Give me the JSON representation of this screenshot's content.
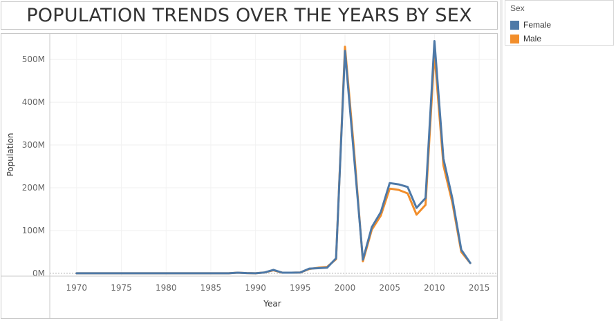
{
  "title": "POPULATION TRENDS OVER THE YEARS BY SEX",
  "legend": {
    "title": "Sex",
    "items": [
      {
        "label": "Female",
        "color": "#4e79a7"
      },
      {
        "label": "Male",
        "color": "#f28e2b"
      }
    ]
  },
  "chart_data": {
    "type": "line",
    "title": "POPULATION TRENDS OVER THE YEARS BY SEX",
    "xlabel": "Year",
    "ylabel": "Population",
    "xlim": [
      1967,
      2017
    ],
    "ylim": [
      -5000000,
      560000000
    ],
    "x_ticks": [
      1970,
      1975,
      1980,
      1985,
      1990,
      1995,
      2000,
      2005,
      2010,
      2015
    ],
    "x_tick_labels": [
      "1970",
      "1975",
      "1980",
      "1985",
      "1990",
      "1995",
      "2000",
      "2005",
      "2010",
      "2015"
    ],
    "y_ticks": [
      0,
      100000000,
      200000000,
      300000000,
      400000000,
      500000000
    ],
    "y_tick_labels": [
      "0M",
      "100M",
      "200M",
      "300M",
      "400M",
      "500M"
    ],
    "grid": true,
    "legend_position": "right",
    "x": [
      1970,
      1971,
      1972,
      1973,
      1974,
      1975,
      1976,
      1977,
      1978,
      1979,
      1980,
      1981,
      1982,
      1983,
      1984,
      1985,
      1986,
      1987,
      1988,
      1989,
      1990,
      1991,
      1992,
      1993,
      1994,
      1995,
      1996,
      1997,
      1998,
      1999,
      2000,
      2001,
      2002,
      2003,
      2004,
      2005,
      2006,
      2007,
      2008,
      2009,
      2010,
      2011,
      2012,
      2013,
      2014
    ],
    "series": [
      {
        "name": "Male",
        "color": "#f28e2b",
        "values": [
          0,
          0,
          0,
          0,
          0,
          0,
          0,
          0,
          0,
          0,
          0,
          0,
          0,
          0,
          0,
          0,
          0,
          0,
          1500000,
          500000,
          0,
          2000000,
          7000000,
          1500000,
          1500000,
          2000000,
          10000000,
          13000000,
          15000000,
          33000000,
          530000000,
          290000000,
          28000000,
          102000000,
          135000000,
          198000000,
          195000000,
          187000000,
          137000000,
          160000000,
          515000000,
          252000000,
          165000000,
          50000000,
          24000000
        ]
      },
      {
        "name": "Female",
        "color": "#4e79a7",
        "values": [
          0,
          0,
          0,
          0,
          0,
          0,
          0,
          0,
          0,
          0,
          0,
          0,
          0,
          0,
          0,
          0,
          0,
          0,
          1500000,
          500000,
          0,
          2000000,
          8000000,
          1500000,
          1500000,
          2000000,
          11000000,
          12000000,
          13000000,
          35000000,
          520000000,
          275000000,
          32000000,
          108000000,
          143000000,
          211000000,
          208000000,
          202000000,
          153000000,
          176000000,
          543000000,
          268000000,
          175000000,
          55000000,
          24000000
        ]
      }
    ]
  }
}
